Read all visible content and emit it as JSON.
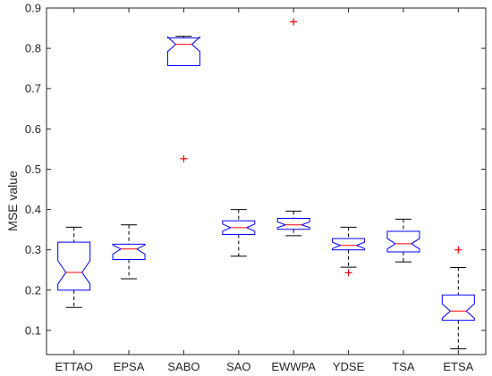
{
  "chart_data": {
    "type": "box",
    "ylabel": "MSE value",
    "xlabel": "",
    "title": "",
    "ylim": [
      0.04,
      0.9
    ],
    "yticks": [
      0.1,
      0.2,
      0.3,
      0.4,
      0.5,
      0.6,
      0.7,
      0.8,
      0.9
    ],
    "notched": true,
    "colors": {
      "box": "#0000ff",
      "median": "#ff0000",
      "whisker": "#000000",
      "outlier": "#ff0000"
    },
    "categories": [
      "ETTAO",
      "EPSA",
      "SABO",
      "SAO",
      "EWWPA",
      "YDSE",
      "TSA",
      "ETSA"
    ],
    "boxes": [
      {
        "min": 0.157,
        "q1": 0.2,
        "median": 0.244,
        "q3": 0.319,
        "max": 0.356,
        "notch_low": 0.215,
        "notch_high": 0.273,
        "outliers": []
      },
      {
        "min": 0.228,
        "q1": 0.276,
        "median": 0.302,
        "q3": 0.314,
        "max": 0.362,
        "notch_low": 0.289,
        "notch_high": 0.312,
        "outliers": []
      },
      {
        "min": 0.757,
        "q1": 0.757,
        "median": 0.81,
        "q3": 0.826,
        "max": 0.83,
        "notch_low": 0.792,
        "notch_high": 0.828,
        "outliers": [
          0.526
        ]
      },
      {
        "min": 0.284,
        "q1": 0.338,
        "median": 0.355,
        "q3": 0.372,
        "max": 0.4,
        "notch_low": 0.346,
        "notch_high": 0.364,
        "outliers": []
      },
      {
        "min": 0.335,
        "q1": 0.351,
        "median": 0.362,
        "q3": 0.378,
        "max": 0.396,
        "notch_low": 0.355,
        "notch_high": 0.369,
        "outliers": [
          0.866
        ]
      },
      {
        "min": 0.257,
        "q1": 0.3,
        "median": 0.311,
        "q3": 0.328,
        "max": 0.356,
        "notch_low": 0.303,
        "notch_high": 0.319,
        "outliers": [
          0.243
        ]
      },
      {
        "min": 0.27,
        "q1": 0.295,
        "median": 0.315,
        "q3": 0.346,
        "max": 0.376,
        "notch_low": 0.302,
        "notch_high": 0.328,
        "outliers": []
      },
      {
        "min": 0.054,
        "q1": 0.125,
        "median": 0.148,
        "q3": 0.188,
        "max": 0.256,
        "notch_low": 0.13,
        "notch_high": 0.166,
        "outliers": [
          0.3
        ]
      }
    ]
  }
}
